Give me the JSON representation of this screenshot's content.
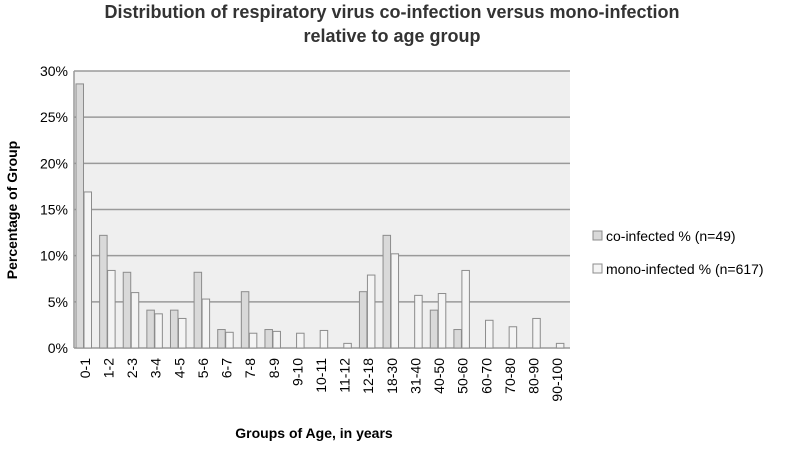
{
  "chart_data": {
    "type": "bar",
    "title_line1": "Distribution of respiratory virus co-infection versus mono-infection",
    "title_line2": "relative to age group",
    "xlabel": "Groups of Age, in years",
    "ylabel": "Percentage of Group",
    "categories": [
      "0-1",
      "1-2",
      "2-3",
      "3-4",
      "4-5",
      "5-6",
      "6-7",
      "7-8",
      "8-9",
      "9-10",
      "10-11",
      "11-12",
      "12-18",
      "18-30",
      "31-40",
      "40-50",
      "50-60",
      "60-70",
      "70-80",
      "80-90",
      "90-100"
    ],
    "ylim": [
      0,
      30
    ],
    "yticks": [
      0,
      5,
      10,
      15,
      20,
      25,
      30
    ],
    "ytick_labels": [
      "0%",
      "5%",
      "10%",
      "15%",
      "20%",
      "25%",
      "30%"
    ],
    "grid": true,
    "legend_position": "right",
    "series": [
      {
        "name": "co-infected % (n=49)",
        "values": [
          28.6,
          12.2,
          8.2,
          4.1,
          4.1,
          8.2,
          2.0,
          6.1,
          2.0,
          0,
          0,
          0,
          6.1,
          12.2,
          0,
          4.1,
          2.0,
          0,
          0,
          0,
          0
        ],
        "fill": "#d9d9d9",
        "stroke": "#8c8c8c"
      },
      {
        "name": "mono-infected % (n=617)",
        "values": [
          16.9,
          8.4,
          6.0,
          3.7,
          3.2,
          5.3,
          1.7,
          1.6,
          1.8,
          1.6,
          1.9,
          0.5,
          7.9,
          10.2,
          5.7,
          5.9,
          8.4,
          3.0,
          2.3,
          3.2,
          0.5
        ],
        "fill": "#f4f4f4",
        "stroke": "#8c8c8c"
      }
    ],
    "colors": {
      "plot_bg": "#efefef",
      "gridline": "#9a9a9a",
      "title": "#333333"
    }
  }
}
